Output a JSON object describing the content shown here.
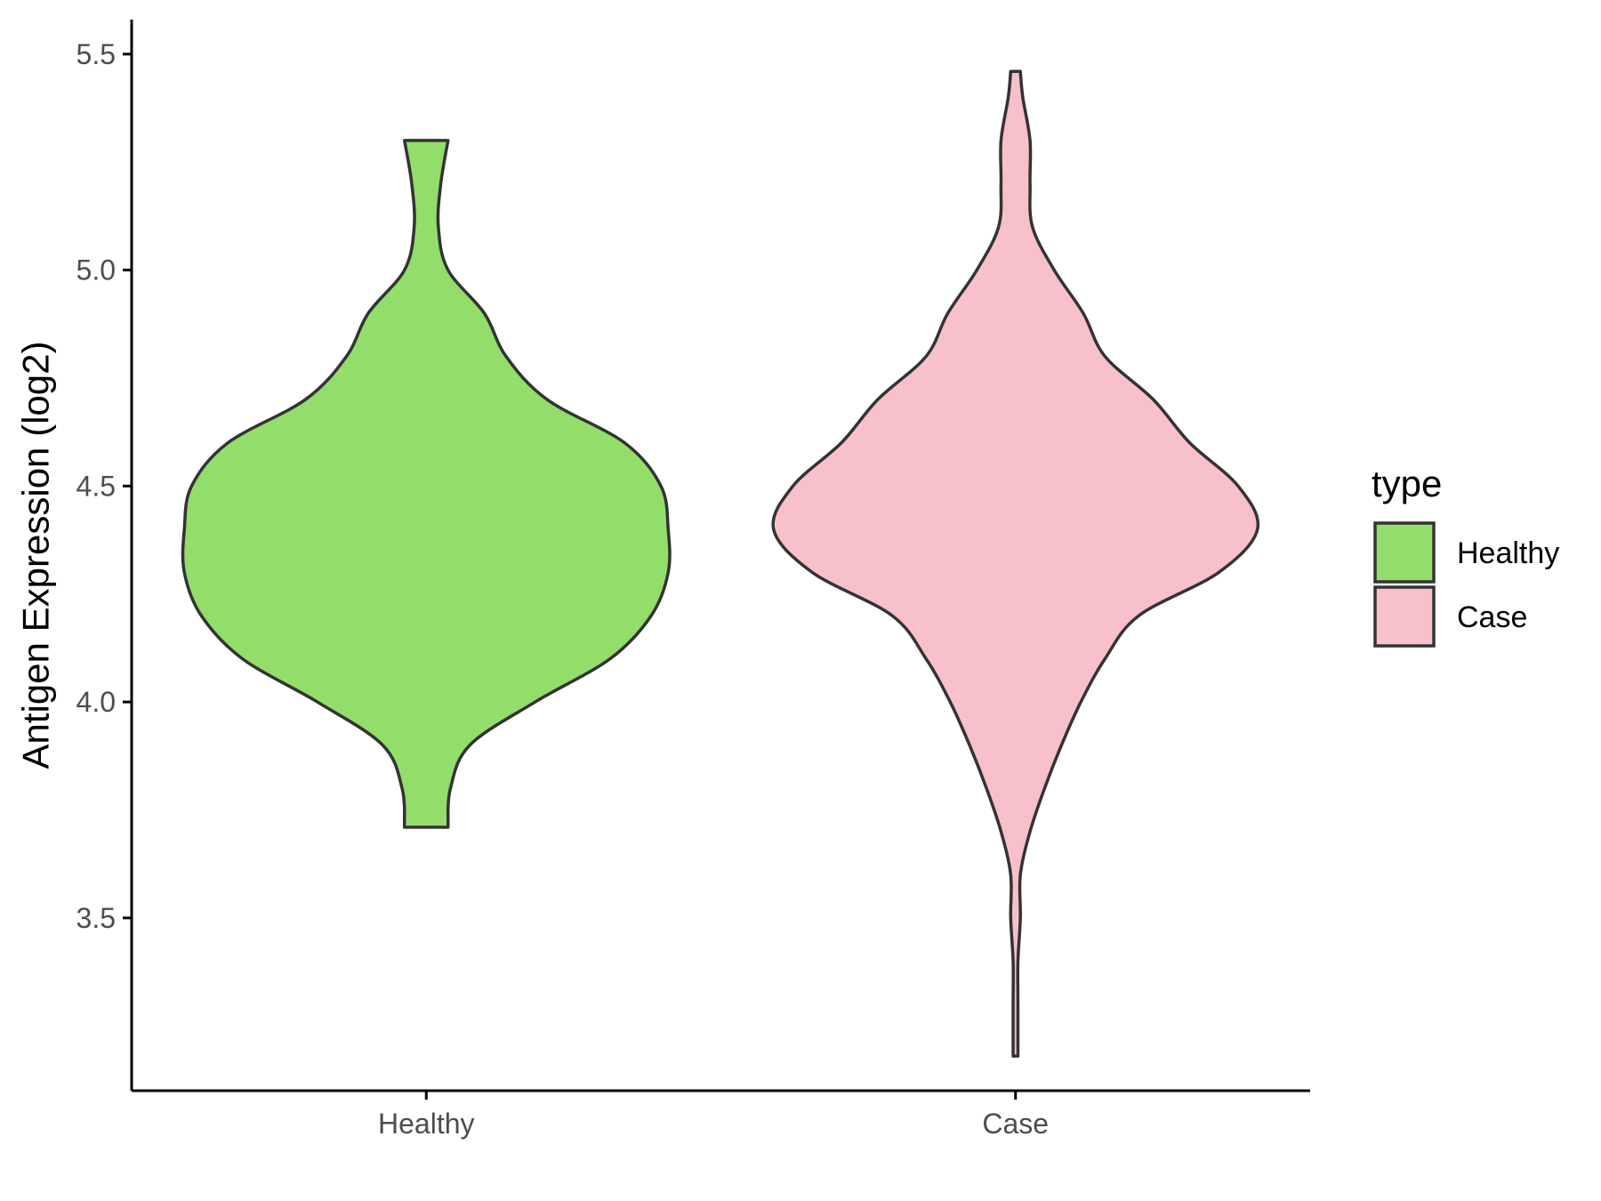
{
  "chart_data": {
    "type": "violin",
    "title": "",
    "xlabel": "",
    "ylabel": "Antigen Expression (log2)",
    "ylim": [
      3.1,
      5.58
    ],
    "yticks": [
      "3.5",
      "4.0",
      "4.5",
      "5.0",
      "5.5"
    ],
    "categories": [
      "Healthy",
      "Case"
    ],
    "grid": false,
    "legend": {
      "title": "type",
      "position": "right",
      "entries": [
        {
          "label": "Healthy",
          "color": "#93DD6B"
        },
        {
          "label": "Case",
          "color": "#F8C0CB"
        }
      ]
    },
    "series": [
      {
        "category": "Healthy",
        "color": "#93DD6B",
        "min": 3.71,
        "max": 5.3,
        "density": [
          [
            3.71,
            0.09
          ],
          [
            3.8,
            0.1
          ],
          [
            3.9,
            0.18
          ],
          [
            4.0,
            0.45
          ],
          [
            4.1,
            0.76
          ],
          [
            4.2,
            0.93
          ],
          [
            4.3,
            1.0
          ],
          [
            4.4,
            1.0
          ],
          [
            4.5,
            0.97
          ],
          [
            4.6,
            0.82
          ],
          [
            4.7,
            0.5
          ],
          [
            4.8,
            0.33
          ],
          [
            4.9,
            0.24
          ],
          [
            5.0,
            0.09
          ],
          [
            5.1,
            0.05
          ],
          [
            5.2,
            0.06
          ],
          [
            5.3,
            0.09
          ]
        ]
      },
      {
        "category": "Case",
        "color": "#F8C0CB",
        "min": 3.18,
        "max": 5.46,
        "density": [
          [
            3.18,
            0.01
          ],
          [
            3.3,
            0.01
          ],
          [
            3.4,
            0.01
          ],
          [
            3.5,
            0.02
          ],
          [
            3.6,
            0.02
          ],
          [
            3.7,
            0.06
          ],
          [
            3.8,
            0.12
          ],
          [
            3.9,
            0.19
          ],
          [
            4.0,
            0.27
          ],
          [
            4.1,
            0.37
          ],
          [
            4.2,
            0.51
          ],
          [
            4.3,
            0.84
          ],
          [
            4.4,
            1.0
          ],
          [
            4.5,
            0.92
          ],
          [
            4.6,
            0.72
          ],
          [
            4.7,
            0.57
          ],
          [
            4.8,
            0.37
          ],
          [
            4.9,
            0.28
          ],
          [
            5.0,
            0.16
          ],
          [
            5.1,
            0.07
          ],
          [
            5.2,
            0.06
          ],
          [
            5.3,
            0.06
          ],
          [
            5.4,
            0.03
          ],
          [
            5.46,
            0.02
          ]
        ]
      }
    ]
  }
}
